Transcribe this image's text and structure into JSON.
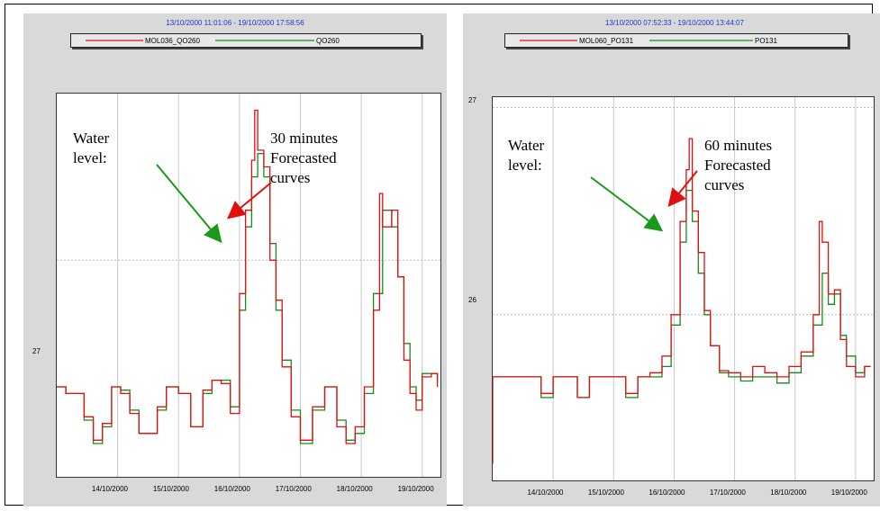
{
  "charts": [
    {
      "header": "13/10/2000 11:01:06 - 19/10/2000 17:58:56",
      "legend": [
        "MOL036_QO260",
        "QO260"
      ],
      "ytick": "27",
      "xticks": [
        "14/10/2000",
        "15/10/2000",
        "16/10/2000",
        "17/10/2000",
        "18/10/2000",
        "19/10/2000"
      ],
      "annotation_left": "Water\nlevel:",
      "annotation_right": "30 minutes\nForecasted\ncurves"
    },
    {
      "header": "13/10/2000 07:52:33 - 19/10/2000 13:44:07",
      "legend": [
        "MOL060_PO131",
        "PO131"
      ],
      "ytick_top": "27",
      "ytick_mid": "26",
      "xticks": [
        "14/10/2000",
        "15/10/2000",
        "16/10/2000",
        "17/10/2000",
        "18/10/2000",
        "19/10/2000"
      ],
      "annotation_left": "Water\nlevel:",
      "annotation_right": "60 minutes\nForecasted\ncurves"
    }
  ],
  "colors": {
    "observed": "#1a8a1a",
    "forecast": "#e01010",
    "arrow_green": "#1a9a1a",
    "arrow_red": "#e01010",
    "header": "#1f35c8"
  },
  "chart_data": [
    {
      "type": "line",
      "title": "13/10/2000 11:01:06 - 19/10/2000 17:58:56",
      "xlabel": "",
      "ylabel": "",
      "xlim": [
        0,
        6.3
      ],
      "ylim": [
        26.35,
        27.5
      ],
      "x_tick_values": [
        1,
        2,
        3,
        4,
        5,
        6
      ],
      "x_tick_labels": [
        "14/10/2000",
        "15/10/2000",
        "16/10/2000",
        "17/10/2000",
        "18/10/2000",
        "19/10/2000"
      ],
      "y_tick_values": [
        27
      ],
      "series": [
        {
          "name": "QO260",
          "color": "#1a8a1a",
          "x": [
            0,
            0.15,
            0.45,
            0.6,
            0.75,
            0.9,
            1.05,
            1.2,
            1.35,
            1.5,
            1.65,
            1.8,
            2.0,
            2.2,
            2.4,
            2.55,
            2.7,
            2.85,
            3.0,
            3.1,
            3.2,
            3.3,
            3.4,
            3.5,
            3.6,
            3.7,
            3.85,
            4.0,
            4.2,
            4.4,
            4.6,
            4.75,
            4.9,
            5.05,
            5.2,
            5.35,
            5.5,
            5.6,
            5.7,
            5.8,
            5.9,
            6.0,
            6.15,
            6.25
          ],
          "y": [
            26.62,
            26.6,
            26.52,
            26.45,
            26.5,
            26.62,
            26.61,
            26.55,
            26.48,
            26.48,
            26.55,
            26.62,
            26.6,
            26.5,
            26.6,
            26.64,
            26.64,
            26.56,
            26.85,
            27.1,
            27.25,
            27.32,
            27.25,
            27.05,
            26.85,
            26.7,
            26.55,
            26.45,
            26.55,
            26.62,
            26.52,
            26.46,
            26.48,
            26.6,
            26.9,
            27.15,
            27.1,
            26.95,
            26.75,
            26.62,
            26.58,
            26.66,
            26.66,
            26.64
          ]
        },
        {
          "name": "MOL036_QO260",
          "color": "#e01010",
          "x": [
            0,
            0.15,
            0.45,
            0.6,
            0.75,
            0.9,
            1.05,
            1.2,
            1.35,
            1.5,
            1.65,
            1.8,
            2.0,
            2.2,
            2.4,
            2.55,
            2.7,
            2.85,
            3.0,
            3.1,
            3.2,
            3.25,
            3.3,
            3.4,
            3.5,
            3.6,
            3.7,
            3.85,
            4.0,
            4.2,
            4.4,
            4.6,
            4.75,
            4.9,
            5.05,
            5.2,
            5.3,
            5.35,
            5.5,
            5.6,
            5.7,
            5.8,
            5.9,
            6.0,
            6.15,
            6.25
          ],
          "y": [
            26.62,
            26.6,
            26.53,
            26.46,
            26.51,
            26.62,
            26.6,
            26.54,
            26.48,
            26.48,
            26.56,
            26.62,
            26.6,
            26.5,
            26.61,
            26.64,
            26.63,
            26.54,
            26.9,
            27.15,
            27.3,
            27.45,
            27.33,
            27.28,
            27.0,
            26.88,
            26.68,
            26.53,
            26.46,
            26.56,
            26.62,
            26.5,
            26.45,
            26.5,
            26.62,
            26.85,
            27.2,
            27.1,
            27.15,
            26.95,
            26.7,
            26.6,
            26.55,
            26.65,
            26.66,
            26.62
          ]
        }
      ]
    },
    {
      "type": "line",
      "title": "13/10/2000 07:52:33 - 19/10/2000 13:44:07",
      "xlabel": "",
      "ylabel": "",
      "xlim": [
        0,
        6.3
      ],
      "ylim": [
        25.2,
        27.05
      ],
      "x_tick_values": [
        1,
        2,
        3,
        4,
        5,
        6
      ],
      "x_tick_labels": [
        "14/10/2000",
        "15/10/2000",
        "16/10/2000",
        "17/10/2000",
        "18/10/2000",
        "19/10/2000"
      ],
      "y_tick_values": [
        26,
        27
      ],
      "series": [
        {
          "name": "PO131",
          "color": "#1a8a1a",
          "x": [
            0,
            0.3,
            0.6,
            0.8,
            1.0,
            1.2,
            1.4,
            1.6,
            1.8,
            2.0,
            2.2,
            2.4,
            2.6,
            2.8,
            2.95,
            3.1,
            3.2,
            3.3,
            3.4,
            3.5,
            3.6,
            3.75,
            3.9,
            4.1,
            4.3,
            4.5,
            4.7,
            4.9,
            5.1,
            5.3,
            5.45,
            5.55,
            5.65,
            5.75,
            5.85,
            6.0,
            6.15,
            6.25
          ],
          "y": [
            25.7,
            25.7,
            25.7,
            25.6,
            25.7,
            25.7,
            25.6,
            25.7,
            25.7,
            25.7,
            25.6,
            25.7,
            25.7,
            25.75,
            25.95,
            26.35,
            26.6,
            26.45,
            26.2,
            26.0,
            25.85,
            25.72,
            25.7,
            25.68,
            25.7,
            25.7,
            25.67,
            25.72,
            25.8,
            25.95,
            26.2,
            26.05,
            26.1,
            25.9,
            25.8,
            25.72,
            25.75,
            25.75
          ]
        },
        {
          "name": "MOL060_PO131",
          "color": "#e01010",
          "x": [
            0,
            0,
            0.3,
            0.6,
            0.8,
            1.0,
            1.2,
            1.4,
            1.6,
            1.8,
            2.0,
            2.2,
            2.4,
            2.6,
            2.8,
            2.95,
            3.1,
            3.2,
            3.25,
            3.3,
            3.4,
            3.5,
            3.6,
            3.75,
            3.9,
            4.1,
            4.3,
            4.5,
            4.7,
            4.9,
            5.1,
            5.3,
            5.4,
            5.45,
            5.55,
            5.65,
            5.75,
            5.85,
            6.0,
            6.15,
            6.25
          ],
          "y": [
            25.28,
            25.7,
            25.7,
            25.7,
            25.62,
            25.7,
            25.7,
            25.6,
            25.7,
            25.7,
            25.7,
            25.62,
            25.7,
            25.72,
            25.8,
            26.0,
            26.45,
            26.7,
            26.85,
            26.5,
            26.3,
            26.02,
            25.85,
            25.73,
            25.72,
            25.7,
            25.75,
            25.72,
            25.7,
            25.75,
            25.82,
            26.0,
            26.45,
            26.35,
            26.1,
            26.12,
            25.88,
            25.75,
            25.7,
            25.75,
            25.75
          ]
        }
      ]
    }
  ]
}
